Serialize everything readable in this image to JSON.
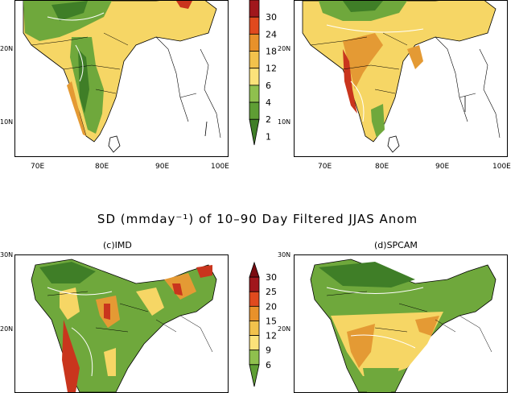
{
  "section_title": "SD (mmday⁻¹) of 10–90 Day Filtered JJAS Anom",
  "panels": {
    "c": {
      "title": "(c)IMD"
    },
    "d": {
      "title": "(d)SPCAM"
    }
  },
  "lat_labels": {
    "n30": "30N",
    "n20": "20N",
    "n10": "10N"
  },
  "lon_labels": {
    "e70": "70E",
    "e80": "80E",
    "e90": "90E",
    "e100": "100E"
  },
  "colorbar_top": {
    "labels": [
      "30",
      "24",
      "18",
      "12",
      "6",
      "4",
      "2",
      "1"
    ],
    "colors": [
      "#a1171c",
      "#e04a1e",
      "#e8912a",
      "#f2c24c",
      "#fbe27a",
      "#8fc04e",
      "#5f9e34",
      "#3f7e27"
    ]
  },
  "colorbar_bottom": {
    "labels": [
      "30",
      "25",
      "20",
      "15",
      "12",
      "9",
      "6"
    ],
    "colors": [
      "#7a0b10",
      "#a1171c",
      "#e04a1e",
      "#e8912a",
      "#f2c24c",
      "#fbe27a",
      "#8fc04e",
      "#5f9e34"
    ]
  },
  "colors": {
    "green_dark": "#3f7e27",
    "green": "#6fa83c",
    "yellow": "#f6d665",
    "orange": "#e49a34",
    "red": "#c9351d"
  }
}
